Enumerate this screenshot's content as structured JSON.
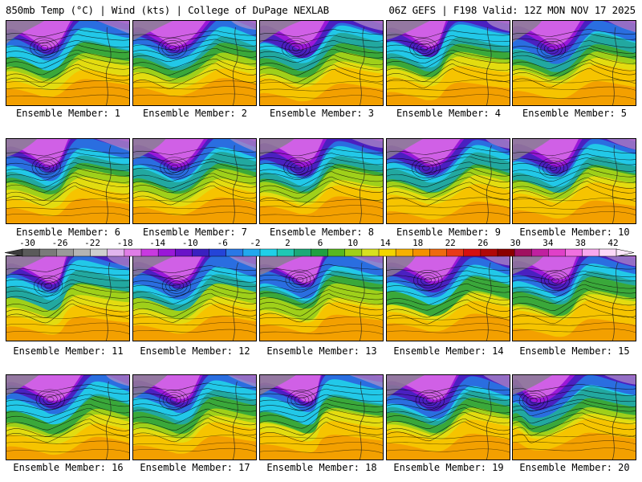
{
  "header": {
    "left": "850mb Temp (°C) | Wind (kts) | College of DuPage NEXLAB",
    "right": "06Z GEFS | F198 Valid: 12Z MON NOV 17 2025"
  },
  "panels": [
    {
      "label": "Ensemble Member: 1"
    },
    {
      "label": "Ensemble Member: 2"
    },
    {
      "label": "Ensemble Member: 3"
    },
    {
      "label": "Ensemble Member: 4"
    },
    {
      "label": "Ensemble Member: 5"
    },
    {
      "label": "Ensemble Member: 6"
    },
    {
      "label": "Ensemble Member: 7"
    },
    {
      "label": "Ensemble Member: 8"
    },
    {
      "label": "Ensemble Member: 9"
    },
    {
      "label": "Ensemble Member: 10"
    },
    {
      "label": "Ensemble Member: 11"
    },
    {
      "label": "Ensemble Member: 12"
    },
    {
      "label": "Ensemble Member: 13"
    },
    {
      "label": "Ensemble Member: 14"
    },
    {
      "label": "Ensemble Member: 15"
    },
    {
      "label": "Ensemble Member: 16"
    },
    {
      "label": "Ensemble Member: 17"
    },
    {
      "label": "Ensemble Member: 18"
    },
    {
      "label": "Ensemble Member: 19"
    },
    {
      "label": "Ensemble Member: 20"
    }
  ],
  "colorbar": {
    "ticks": [
      "-30",
      "-26",
      "-22",
      "-18",
      "-14",
      "-10",
      "-6",
      "-2",
      "2",
      "6",
      "10",
      "14",
      "18",
      "22",
      "26",
      "30",
      "34",
      "38",
      "42"
    ],
    "colors": [
      "#5a5a5a",
      "#7a7a7a",
      "#9a9a9a",
      "#b4b4b4",
      "#cfcfcf",
      "#e2b4ee",
      "#e07ee6",
      "#c83ae0",
      "#9a18d8",
      "#6a12c8",
      "#3a20c0",
      "#2444d8",
      "#2a78e6",
      "#22a8ee",
      "#20d0e8",
      "#20c8b4",
      "#1ca878",
      "#20a040",
      "#58b820",
      "#a0d018",
      "#d8e020",
      "#f2d400",
      "#f6b000",
      "#f49000",
      "#ee6a10",
      "#e83a18",
      "#d61010",
      "#b00808",
      "#8a0000",
      "#a01060",
      "#c020a0",
      "#e040c8",
      "#f070e0",
      "#f8a8ee",
      "#fcd8f8"
    ]
  }
}
